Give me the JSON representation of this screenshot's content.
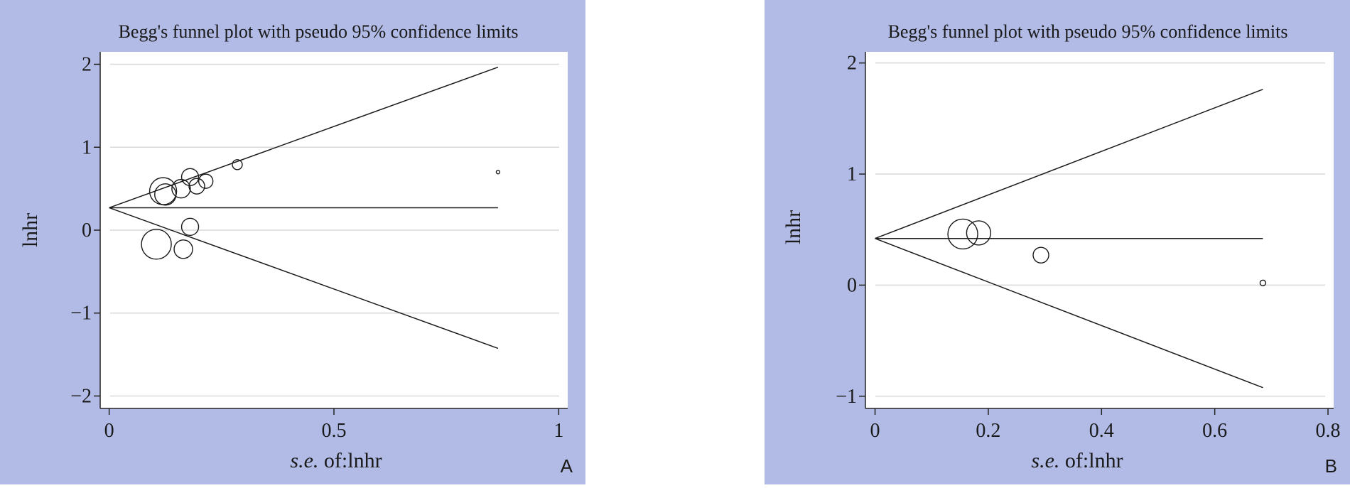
{
  "panels": [
    {
      "letter": "A",
      "chart_data": {
        "type": "scatter",
        "title": "Begg's funnel plot with pseudo 95% confidence limits",
        "xlabel_prefix": "s.e.",
        "xlabel_suffix": "of:lnhr",
        "ylabel": "lnhr",
        "xlim": [
          -0.02,
          1.02
        ],
        "ylim": [
          -2.15,
          2.15
        ],
        "xticks": [
          0,
          0.5,
          1
        ],
        "xtick_labels": [
          "0",
          "0.5",
          "1"
        ],
        "yticks": [
          -2,
          -1,
          0,
          1,
          2
        ],
        "ytick_labels": [
          "−2",
          "−1",
          "0",
          "1",
          "2"
        ],
        "grid": "horizontal",
        "pooled_estimate": 0.27,
        "se_max": 0.865,
        "points": [
          {
            "x": 0.105,
            "y": -0.17,
            "r": 21
          },
          {
            "x": 0.12,
            "y": 0.47,
            "r": 19
          },
          {
            "x": 0.125,
            "y": 0.43,
            "r": 15
          },
          {
            "x": 0.16,
            "y": 0.5,
            "r": 13
          },
          {
            "x": 0.165,
            "y": -0.23,
            "r": 13
          },
          {
            "x": 0.18,
            "y": 0.64,
            "r": 12
          },
          {
            "x": 0.18,
            "y": 0.04,
            "r": 12
          },
          {
            "x": 0.195,
            "y": 0.53,
            "r": 11
          },
          {
            "x": 0.215,
            "y": 0.59,
            "r": 10
          },
          {
            "x": 0.285,
            "y": 0.79,
            "r": 7
          },
          {
            "x": 0.865,
            "y": 0.7,
            "r": 2.5
          }
        ]
      }
    },
    {
      "letter": "B",
      "chart_data": {
        "type": "scatter",
        "title": "Begg's funnel plot with pseudo 95% confidence limits",
        "xlabel_prefix": "s.e.",
        "xlabel_suffix": "of:lnhr",
        "ylabel": "lnhr",
        "xlim": [
          -0.017,
          0.81
        ],
        "ylim": [
          -1.11,
          2.1
        ],
        "xticks": [
          0,
          0.2,
          0.4,
          0.6,
          0.8
        ],
        "xtick_labels": [
          "0",
          "0.2",
          "0.4",
          "0.6",
          "0.8"
        ],
        "yticks": [
          -1,
          0,
          1,
          2
        ],
        "ytick_labels": [
          "−1",
          "0",
          "1",
          "2"
        ],
        "grid": "horizontal",
        "pooled_estimate": 0.42,
        "se_max": 0.685,
        "points": [
          {
            "x": 0.155,
            "y": 0.46,
            "r": 21
          },
          {
            "x": 0.183,
            "y": 0.47,
            "r": 17
          },
          {
            "x": 0.293,
            "y": 0.27,
            "r": 11
          },
          {
            "x": 0.685,
            "y": 0.02,
            "r": 4
          }
        ]
      }
    }
  ]
}
